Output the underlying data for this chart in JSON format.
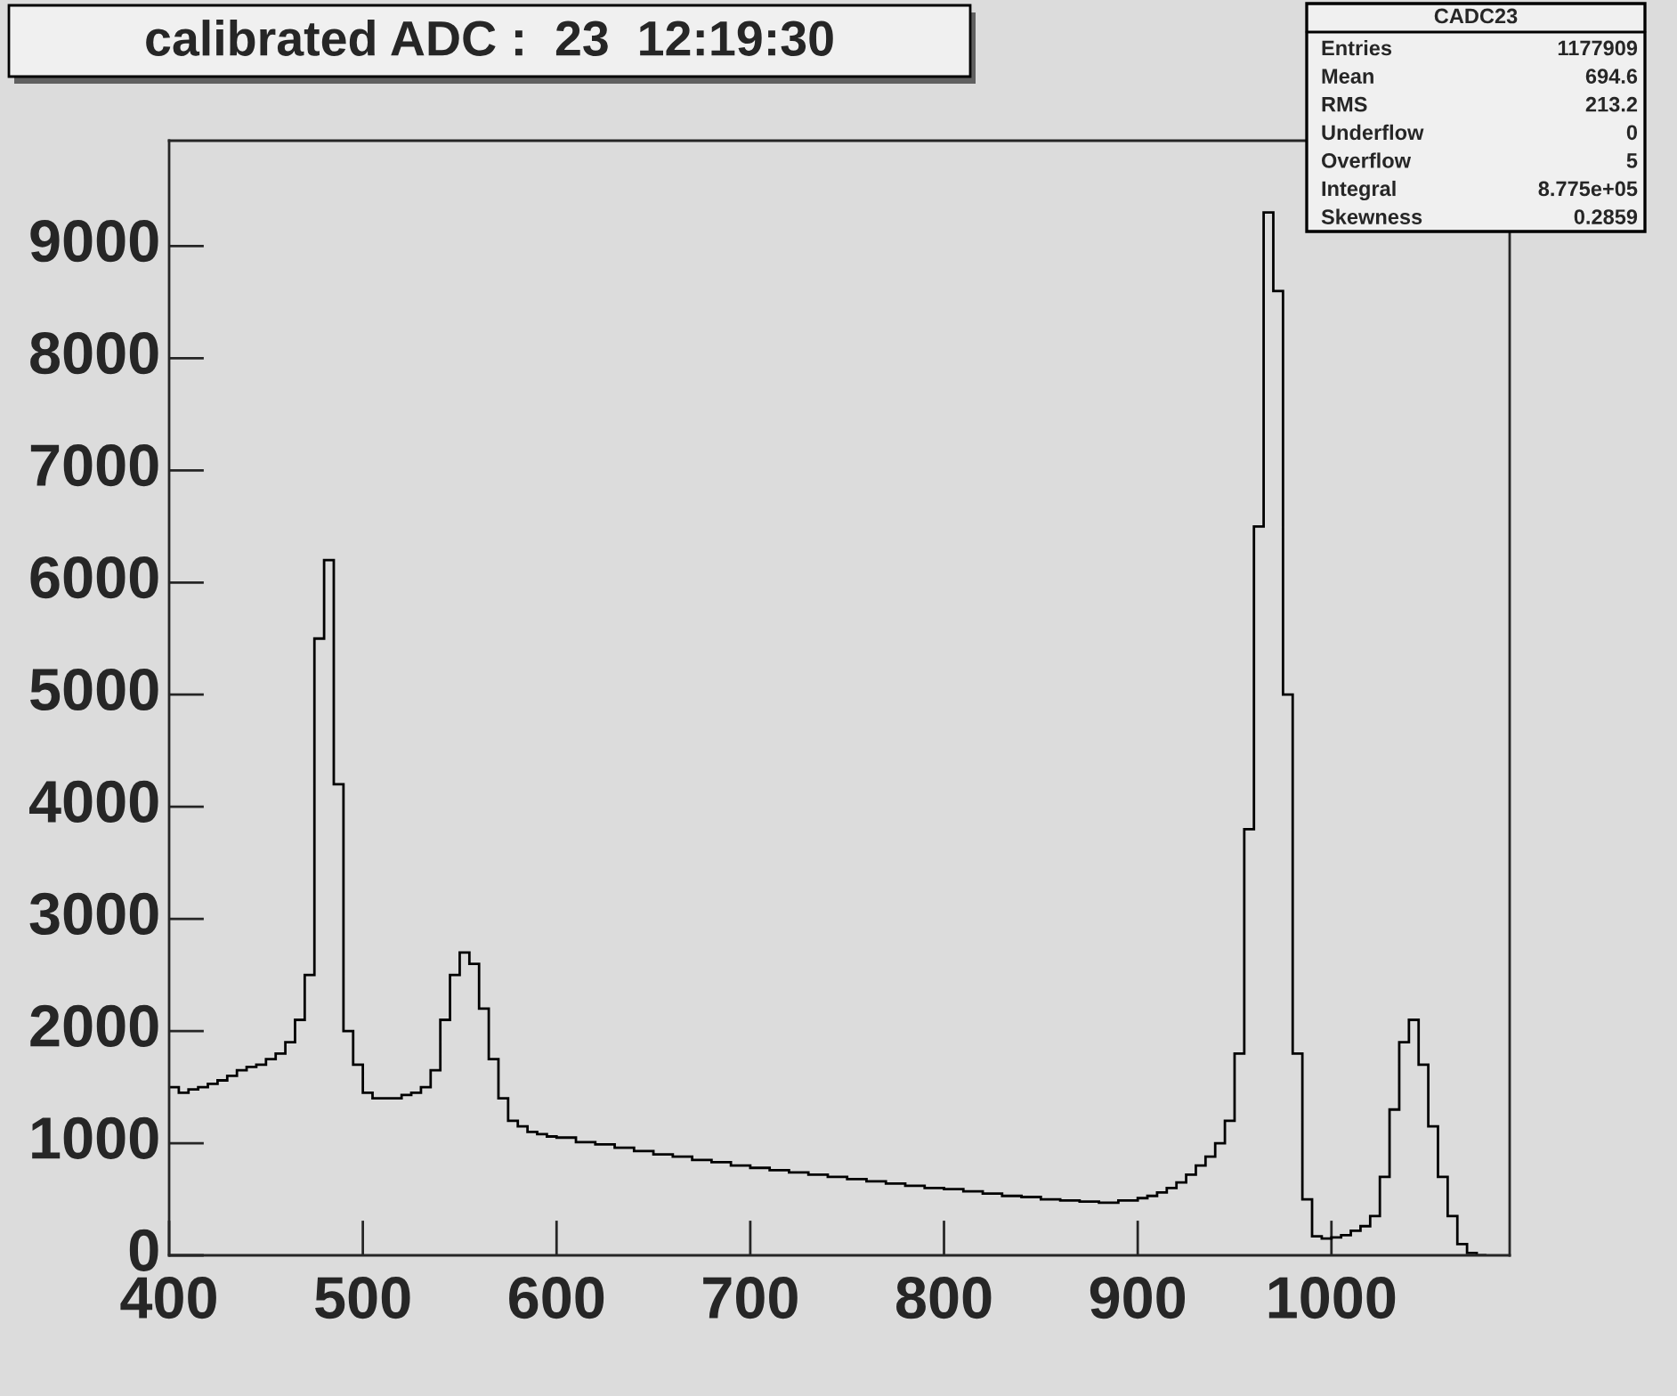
{
  "chart_data": {
    "type": "histogram",
    "title": "calibrated ADC :  23  12:19:30",
    "bins": [
      400,
      405,
      410,
      415,
      420,
      425,
      430,
      435,
      440,
      445,
      450,
      455,
      460,
      465,
      470,
      475,
      480,
      485,
      490,
      495,
      500,
      505,
      510,
      515,
      520,
      525,
      530,
      535,
      540,
      545,
      550,
      555,
      560,
      565,
      570,
      575,
      580,
      585,
      590,
      595,
      600,
      610,
      620,
      630,
      640,
      650,
      660,
      670,
      680,
      690,
      700,
      710,
      720,
      730,
      740,
      750,
      760,
      770,
      780,
      790,
      800,
      810,
      820,
      830,
      840,
      850,
      860,
      870,
      880,
      890,
      900,
      905,
      910,
      915,
      920,
      925,
      930,
      935,
      940,
      945,
      950,
      955,
      960,
      965,
      970,
      975,
      980,
      985,
      990,
      995,
      1000,
      1005,
      1010,
      1015,
      1020,
      1025,
      1030,
      1035,
      1040,
      1045,
      1050,
      1055,
      1060,
      1065,
      1070,
      1075,
      1080
    ],
    "values": [
      1500,
      1450,
      1480,
      1500,
      1530,
      1560,
      1600,
      1650,
      1680,
      1700,
      1750,
      1800,
      1900,
      2100,
      2500,
      5500,
      6200,
      4200,
      2000,
      1700,
      1450,
      1400,
      1400,
      1400,
      1430,
      1450,
      1500,
      1650,
      2100,
      2500,
      2700,
      2600,
      2200,
      1750,
      1400,
      1200,
      1150,
      1100,
      1080,
      1060,
      1050,
      1010,
      990,
      960,
      930,
      900,
      880,
      850,
      830,
      800,
      780,
      760,
      740,
      720,
      700,
      680,
      660,
      640,
      620,
      600,
      590,
      570,
      550,
      530,
      520,
      500,
      490,
      480,
      470,
      490,
      510,
      530,
      560,
      600,
      650,
      720,
      800,
      880,
      1000,
      1200,
      1800,
      3800,
      6500,
      9300,
      8600,
      5000,
      1800,
      500,
      170,
      150,
      160,
      180,
      220,
      260,
      350,
      700,
      1300,
      1900,
      2100,
      1700,
      1150,
      700,
      350,
      100,
      20,
      0
    ],
    "color": "#000000",
    "xlim": [
      400,
      1092
    ],
    "ylim": [
      0,
      9940
    ],
    "xticks": [
      400,
      500,
      600,
      700,
      800,
      900,
      1000
    ],
    "yticks": [
      0,
      1000,
      2000,
      3000,
      4000,
      5000,
      6000,
      7000,
      8000,
      9000
    ],
    "grid": false,
    "annotations": [
      "CADC23",
      "Entries",
      "1177909",
      "Mean",
      "694.6",
      "RMS",
      "213.2",
      "Underflow",
      "0",
      "Overflow",
      "5",
      "Integral",
      "8.775e+05",
      "Skewness",
      "0.2859"
    ]
  }
}
